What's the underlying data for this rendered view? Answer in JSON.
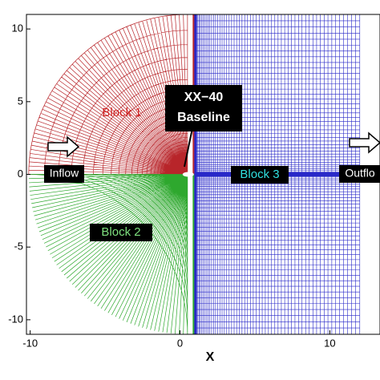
{
  "chart_data": {
    "type": "mesh",
    "xlabel": "X",
    "xlim": [
      -10.25,
      13.35
    ],
    "ylim": [
      -11,
      11
    ],
    "xticks": [
      -10,
      0,
      10
    ],
    "yticks": [
      -10,
      -5,
      0,
      5,
      10
    ],
    "annotations": [
      "Block 1",
      "Block 2",
      "Block 3",
      "XX−40",
      "Baseline",
      "Inflow",
      "Outflo"
    ],
    "colors": [
      "#b8252a",
      "#2ea82e",
      "#2828c8"
    ]
  }
}
